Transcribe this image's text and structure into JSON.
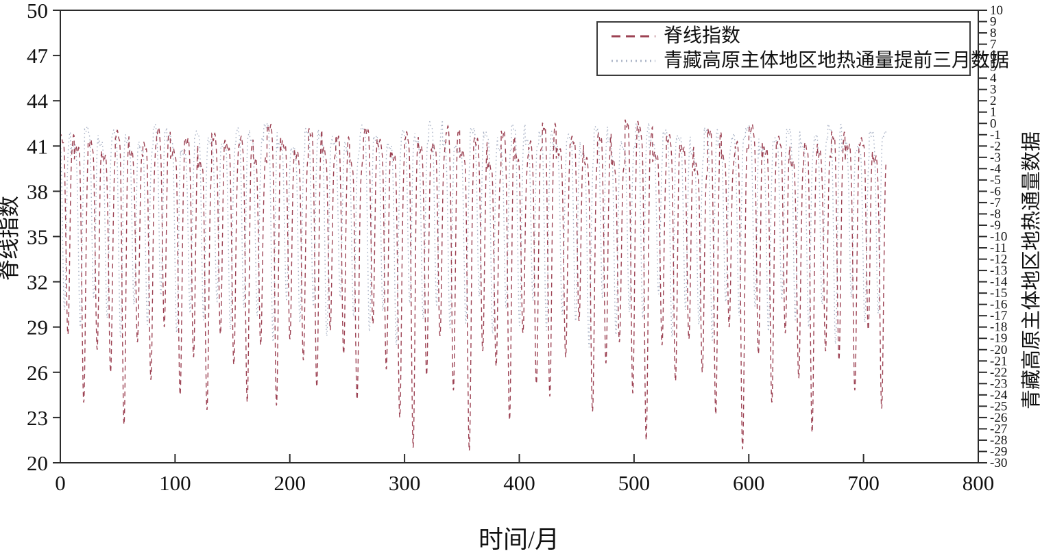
{
  "chart_data": {
    "type": "line",
    "title": "",
    "xlabel": "时间/月",
    "ylabel_left": "脊线指数",
    "ylabel_right": "青藏高原主体地区地热通量数据",
    "xlim": [
      0,
      800
    ],
    "ylim_left": [
      20,
      50
    ],
    "ylim_right": [
      -30,
      10
    ],
    "x_ticks": [
      0,
      100,
      200,
      300,
      400,
      500,
      600,
      700,
      800
    ],
    "y_ticks_left": [
      20,
      23,
      26,
      29,
      32,
      35,
      38,
      41,
      44,
      47,
      50
    ],
    "y_ticks_right": [
      10,
      9,
      8,
      7,
      6,
      5,
      4,
      3,
      2,
      1,
      0,
      -1,
      -2,
      -3,
      -4,
      -5,
      -6,
      -7,
      -8,
      -9,
      -10,
      -11,
      -12,
      -13,
      -14,
      -15,
      -16,
      -17,
      -18,
      -19,
      -20,
      -21,
      -22,
      -23,
      -24,
      -25,
      -26,
      -27,
      -28,
      -29,
      -30
    ],
    "grid": false,
    "n_months": 720,
    "season_period_months": 12,
    "legend": {
      "position": "top-right",
      "entries": [
        {
          "label": "脊线指数",
          "style": "dashed",
          "color": "#9c4253"
        },
        {
          "label": "青藏高原主体地区地热通量提前三月数据",
          "style": "dotted",
          "color": "#aab3c6"
        }
      ]
    },
    "series": [
      {
        "name": "脊线指数",
        "axis": "left",
        "style": "dashed",
        "color": "#9c4253",
        "lead_months": 0,
        "trough_month_in_year": 7.5,
        "annual_peaks": [
          41.5,
          40.8,
          41.2,
          40.2,
          41.8,
          40.5,
          41.0,
          42.0,
          40.6,
          41.3,
          39.8,
          41.6,
          40.9,
          41.4,
          40.1,
          42.2,
          41.1,
          40.4,
          41.9,
          40.7,
          41.5,
          39.9,
          42.0,
          41.2,
          40.3,
          41.7,
          40.8,
          41.0,
          42.1,
          40.5,
          41.3,
          39.7,
          41.8,
          40.2,
          41.1,
          42.3,
          40.6,
          41.4,
          40.0,
          41.6,
          39.9,
          42.5,
          42.0,
          40.4,
          41.5,
          40.8,
          39.6,
          41.9,
          40.3,
          41.1,
          42.2,
          40.7,
          41.4,
          39.8,
          41.0,
          40.5,
          41.7,
          40.9,
          41.3,
          40.1
        ],
        "annual_troughs": [
          28.5,
          24.0,
          27.5,
          26.0,
          22.5,
          28.0,
          25.5,
          29.0,
          24.5,
          27.0,
          23.5,
          28.5,
          26.5,
          24.0,
          27.8,
          23.8,
          28.2,
          26.8,
          25.0,
          28.8,
          27.2,
          24.2,
          29.2,
          26.2,
          23.0,
          21.0,
          25.8,
          28.4,
          24.8,
          20.8,
          27.4,
          26.4,
          22.8,
          28.6,
          25.2,
          24.4,
          27.0,
          29.4,
          23.4,
          26.6,
          28.0,
          24.6,
          21.5,
          27.8,
          25.4,
          28.2,
          26.0,
          23.2,
          29.0,
          20.9,
          27.2,
          24.0,
          28.6,
          25.6,
          22.0,
          27.4,
          26.8,
          24.8,
          28.8,
          23.6
        ]
      },
      {
        "name": "青藏高原主体地区地热通量提前三月数据",
        "axis": "right",
        "style": "dotted",
        "color": "#aab3c6",
        "lead_months": 3,
        "trough_month_in_year": 7.5,
        "annual_peaks": [
          -1.0,
          -2.0,
          -0.5,
          -1.8,
          -0.8,
          -1.5,
          -2.2,
          -0.3,
          -1.2,
          -2.5,
          -0.9,
          -1.6,
          -2.0,
          -0.6,
          -1.4,
          -0.2,
          -1.9,
          -2.3,
          -0.7,
          -1.1,
          -1.7,
          -2.6,
          -0.4,
          -1.3,
          -2.1,
          -0.8,
          -1.5,
          -0.1,
          -1.8,
          -2.4,
          -0.6,
          -1.0,
          -2.2,
          -0.3,
          -1.6,
          -0.9,
          -2.0,
          -1.2,
          -2.7,
          -0.5,
          -1.4,
          -2.1,
          -0.2,
          -1.7,
          -0.8,
          -1.3,
          -2.5,
          -0.6,
          -1.9,
          -1.1,
          -0.4,
          -2.3,
          -1.5,
          -0.7,
          -2.0,
          -1.2,
          -0.3,
          -1.8,
          -2.2,
          -0.9
        ],
        "annual_troughs": [
          -16.5,
          -18.0,
          -15.5,
          -17.2,
          -19.0,
          -16.0,
          -17.8,
          -15.2,
          -18.5,
          -16.8,
          -17.4,
          -15.8,
          -18.2,
          -16.3,
          -17.0,
          -19.3,
          -15.6,
          -17.6,
          -16.2,
          -18.8,
          -15.4,
          -17.1,
          -18.4,
          -16.6,
          -19.6,
          -15.9,
          -17.3,
          -16.1,
          -18.1,
          -17.7,
          -15.3,
          -18.6,
          -16.4,
          -17.9,
          -15.7,
          -18.3,
          -16.9,
          -17.5,
          -19.8,
          -15.5,
          -18.7,
          -16.7,
          -17.2,
          -15.1,
          -18.9,
          -16.5,
          -17.8,
          -19.2,
          -15.8,
          -17.0,
          -16.2,
          -18.4,
          -15.6,
          -17.4,
          -18.0,
          -16.0,
          -19.5,
          -15.4,
          -17.6,
          -16.8
        ]
      }
    ]
  }
}
